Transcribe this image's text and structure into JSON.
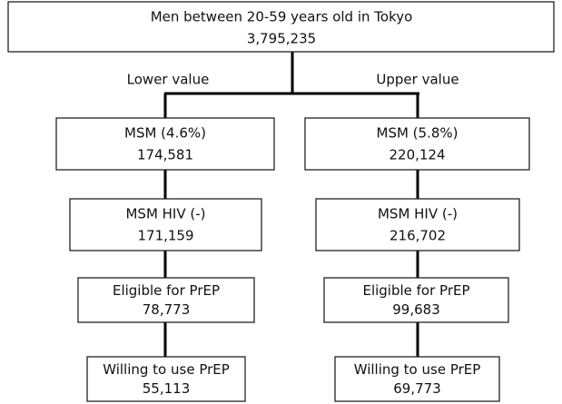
{
  "root": {
    "label": "Men between 20-59 years old in Tokyo",
    "value": "3,795,235"
  },
  "branches": [
    {
      "label": "Lower value",
      "nodes": [
        {
          "label": "MSM (4.6%)",
          "value": "174,581"
        },
        {
          "label": "MSM HIV (-)",
          "value": "171,159"
        },
        {
          "label": "Eligible for PrEP",
          "value": "78,773"
        },
        {
          "label": "Willing to use PrEP",
          "value": "55,113"
        }
      ]
    },
    {
      "label": "Upper value",
      "nodes": [
        {
          "label": "MSM (5.8%)",
          "value": "220,124"
        },
        {
          "label": "MSM HIV (-)",
          "value": "216,702"
        },
        {
          "label": "Eligible for PrEP",
          "value": "99,683"
        },
        {
          "label": "Willing to use PrEP",
          "value": "69,773"
        }
      ]
    }
  ]
}
